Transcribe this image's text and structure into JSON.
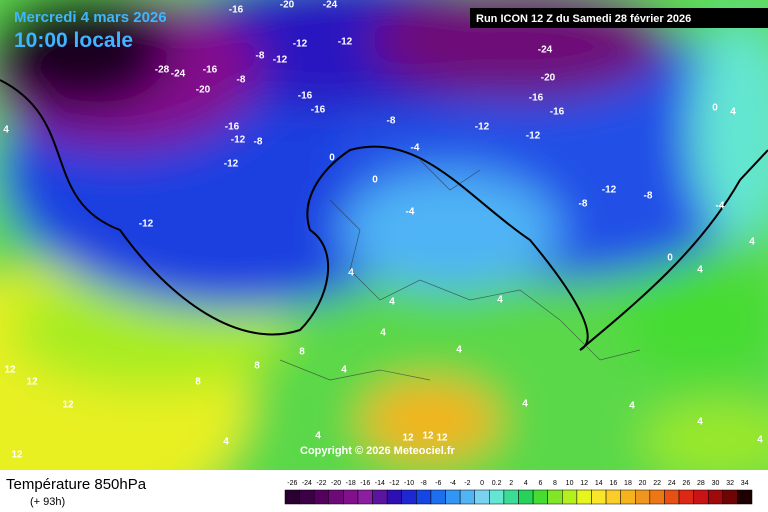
{
  "header": {
    "date": "Mercredi 4 mars 2026",
    "time": "10:00 locale",
    "run": "Run ICON 12 Z du Samedi 28 février 2026",
    "copyright": "Copyright © 2026 Meteociel.fr"
  },
  "footer": {
    "title": "Température 850hPa",
    "lead": "(+ 93h)"
  },
  "legend": {
    "labels": [
      -26,
      -24,
      -22,
      -20,
      -18,
      -16,
      -14,
      -12,
      -10,
      -8,
      -6,
      -4,
      -2,
      0,
      0.2,
      2,
      4,
      6,
      8,
      10,
      12,
      14,
      16,
      18,
      20,
      22,
      24,
      26,
      28,
      30,
      32,
      34
    ],
    "colors": [
      "#2a0030",
      "#3c0046",
      "#55005f",
      "#6e0a78",
      "#820f8c",
      "#8c1ea0",
      "#5a14a0",
      "#2d0fb4",
      "#1e28d2",
      "#1446e6",
      "#1e6ef0",
      "#3296f5",
      "#50b4f5",
      "#78d2f0",
      "#64e6d2",
      "#3cdc96",
      "#28d25a",
      "#46dc32",
      "#82e628",
      "#b4f01e",
      "#e6f51e",
      "#fae628",
      "#facd28",
      "#f5b41e",
      "#f0961e",
      "#eb7814",
      "#e65014",
      "#dc2814",
      "#c81414",
      "#a00a0a",
      "#6e0505",
      "#1e0000"
    ]
  },
  "map": {
    "contour_labels": [
      -16,
      -20,
      -24,
      -12,
      -12,
      -28,
      -24,
      -16,
      -20,
      -8,
      -8,
      -12,
      -16,
      -16,
      -16,
      -12,
      -8,
      -12,
      -12,
      -8,
      -12,
      -12,
      -24,
      -20,
      -16,
      -16,
      -12,
      -8,
      -8,
      0,
      0,
      -4,
      -4,
      0,
      0,
      4,
      -4,
      4,
      4,
      4,
      4,
      4,
      4,
      4,
      4,
      12,
      12,
      12,
      8,
      8,
      8,
      4,
      4,
      4,
      12,
      12,
      12,
      4,
      4,
      4,
      4,
      12
    ]
  }
}
